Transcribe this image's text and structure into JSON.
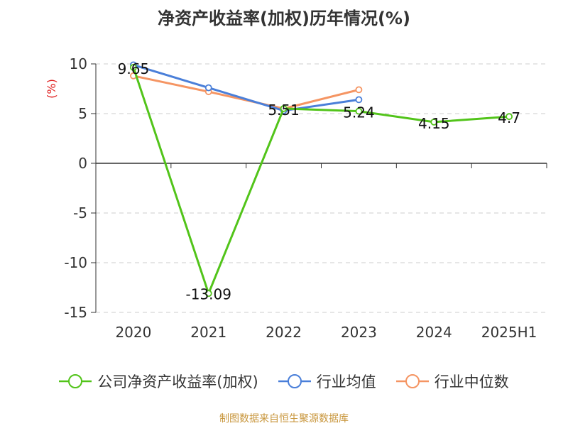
{
  "chart_data": {
    "type": "line",
    "title": "净资产收益率(加权)历年情况(%)",
    "ylabel": "(%)",
    "xlabel": "",
    "categories": [
      "2020",
      "2021",
      "2022",
      "2023",
      "2024",
      "2025H1"
    ],
    "ylim": [
      -15,
      10
    ],
    "yticks": [
      10,
      5,
      0,
      -5,
      -10,
      -15
    ],
    "grid": true,
    "legend_position": "bottom",
    "series": [
      {
        "name": "公司净资产收益率(加权)",
        "color": "#52c41a",
        "values": [
          9.65,
          -13.09,
          5.51,
          5.24,
          4.15,
          4.7
        ],
        "labels": [
          "9.65",
          "-13.09",
          "5.51",
          "5.24",
          "4.15",
          "4.7"
        ]
      },
      {
        "name": "行业均值",
        "color": "#4a7fd9",
        "values": [
          9.9,
          7.6,
          5.3,
          6.4,
          null,
          null
        ]
      },
      {
        "name": "行业中位数",
        "color": "#f59563",
        "values": [
          8.8,
          7.2,
          5.5,
          7.4,
          null,
          null
        ]
      }
    ]
  },
  "source_note": "制图数据来自恒生聚源数据库",
  "colors": {
    "source_note": "#c8963c",
    "ylabel": "#e02020",
    "axis_text": "#333333",
    "grid": "#cccccc"
  }
}
